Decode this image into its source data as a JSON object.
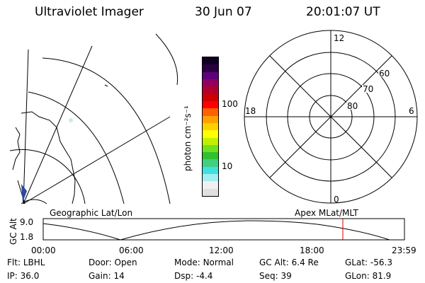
{
  "header": {
    "title": "Ultraviolet Imager",
    "date": "30 Jun 07",
    "time": "20:01:07 UT"
  },
  "colorbar": {
    "unit_label": "photon cm⁻²s⁻¹",
    "ticks": [
      "100",
      "10"
    ],
    "colors": [
      "#e0e0e0",
      "#f0f0f0",
      "#a0f0f0",
      "#40e0e0",
      "#40d080",
      "#30c030",
      "#70e020",
      "#c0f000",
      "#ffff00",
      "#ffd000",
      "#ffa000",
      "#ff6000",
      "#ff0000",
      "#d00000",
      "#b00030",
      "#900060",
      "#60007a",
      "#2a0040",
      "#100020"
    ]
  },
  "polar": {
    "ring_labels": [
      "80",
      "70",
      "60"
    ],
    "mlt_labels": {
      "top": "12",
      "bottom": "0",
      "left": "18",
      "right": "6"
    }
  },
  "projection_labels": {
    "left": "Geographic Lat/Lon",
    "right": "Apex MLat/MLT"
  },
  "altitude_strip": {
    "axis_label": "GC Alt",
    "y_ticks": [
      "9.0",
      "1.8"
    ],
    "x_ticks": [
      "00:00",
      "06:00",
      "12:00",
      "18:00",
      "23:59"
    ],
    "marker_color": "#d00000"
  },
  "footer": {
    "row1": [
      {
        "label": "Flt:",
        "value": "LBHL"
      },
      {
        "label": "Door:",
        "value": "Open"
      },
      {
        "label": "Mode:",
        "value": "Normal"
      },
      {
        "label": "GC Alt:",
        "value": "6.4 Re"
      },
      {
        "label": "GLat:",
        "value": "-56.3"
      }
    ],
    "row2": [
      {
        "label": "IP:",
        "value": "36.0"
      },
      {
        "label": "Gain:",
        "value": "14"
      },
      {
        "label": "Dsp:",
        "value": "-4.4"
      },
      {
        "label": "Seq:",
        "value": "39"
      },
      {
        "label": "GLon:",
        "value": "81.9"
      }
    ]
  }
}
